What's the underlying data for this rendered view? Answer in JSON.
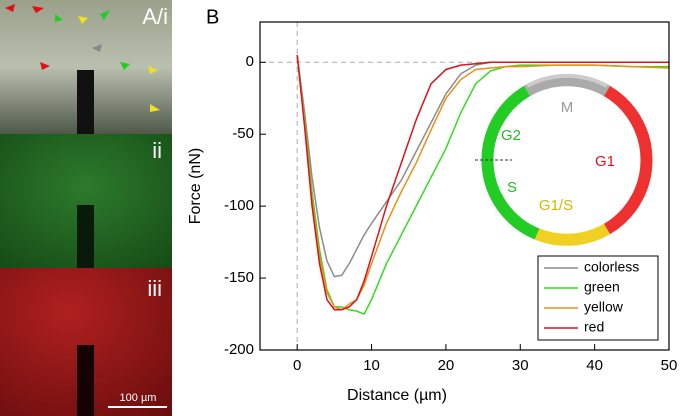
{
  "panel_a": {
    "label": "A/i",
    "label_ii": "ii",
    "label_iii": "iii",
    "scale_bar": "100 µm"
  },
  "chart_data": {
    "type": "line",
    "panel_label": "B",
    "x_label": "Distance (µm)",
    "y_label": "Force (nN)",
    "xlim": [
      -5,
      50
    ],
    "xticks": [
      0,
      10,
      20,
      30,
      40,
      50
    ],
    "ylim": [
      -200,
      28
    ],
    "yticks": [
      -200,
      -150,
      -100,
      -50,
      0
    ],
    "zero_lines": true,
    "legend": "bottom-right",
    "x": [
      0,
      1,
      2,
      3,
      4,
      5,
      6,
      7,
      8,
      9,
      10,
      12,
      14,
      16,
      18,
      20,
      22,
      24,
      26,
      28,
      30,
      35,
      40,
      45,
      50
    ],
    "series": [
      {
        "name": "colorless",
        "color": "#8c8c8c",
        "values": [
          5,
          -35,
          -80,
          -115,
          -138,
          -149,
          -148,
          -140,
          -130,
          -120,
          -112,
          -97,
          -82,
          -62,
          -42,
          -22,
          -8,
          -2,
          0,
          0,
          0,
          0,
          0,
          0,
          0
        ]
      },
      {
        "name": "green",
        "color": "#33dd22",
        "values": [
          5,
          -40,
          -90,
          -130,
          -158,
          -170,
          -170,
          -172,
          -173,
          -175,
          -165,
          -140,
          -120,
          -100,
          -80,
          -60,
          -35,
          -15,
          -6,
          -3,
          -2,
          -2,
          -2,
          -3,
          -3
        ]
      },
      {
        "name": "yellow",
        "color": "#e8901a",
        "values": [
          5,
          -42,
          -95,
          -135,
          -160,
          -170,
          -172,
          -168,
          -165,
          -155,
          -140,
          -112,
          -90,
          -70,
          -47,
          -25,
          -12,
          -5,
          -4,
          -3,
          -3,
          -2,
          -2,
          -3,
          -4
        ]
      },
      {
        "name": "red",
        "color": "#d9141e",
        "values": [
          5,
          -45,
          -100,
          -140,
          -165,
          -172,
          -172,
          -170,
          -165,
          -152,
          -135,
          -100,
          -70,
          -40,
          -15,
          -5,
          -2,
          -1,
          0,
          0,
          0,
          0,
          0,
          0,
          0
        ]
      }
    ]
  },
  "cell_cycle": {
    "m": "M",
    "g1": "G1",
    "g1s": "G1/S",
    "s": "S",
    "g2": "G2"
  }
}
